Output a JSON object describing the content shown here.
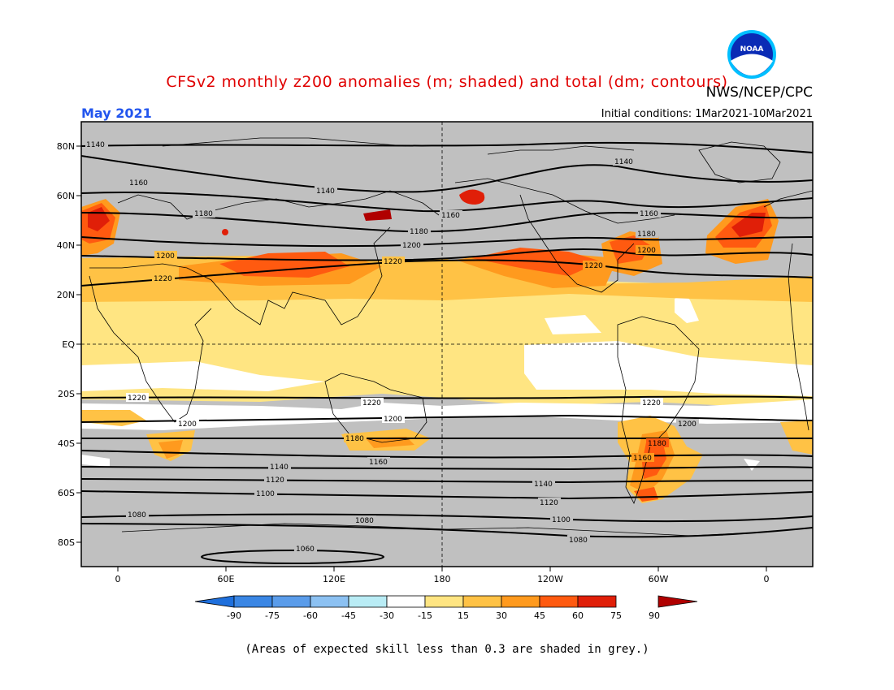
{
  "header": {
    "title": "CFSv2 monthly z200 anomalies (m; shaded) and total (dm; contours)",
    "agency": "NWS/NCEP/CPC",
    "month": "May 2021",
    "initial_conditions": "Initial conditions: 1Mar2021-10Mar2021",
    "logo_text": "NOAA",
    "title_color": "#e00000",
    "month_color": "#2255ee"
  },
  "footnote": "(Areas of expected skill less than 0.3 are shaded in grey.)",
  "map": {
    "lat_labels": [
      "80N",
      "60N",
      "40N",
      "20N",
      "EQ",
      "20S",
      "40S",
      "60S",
      "80S"
    ],
    "lon_labels": [
      "0",
      "60E",
      "120E",
      "180",
      "120W",
      "60W",
      "0"
    ],
    "contour_labels": [
      {
        "id": "c1140a",
        "text": "1140"
      },
      {
        "id": "c1140b",
        "text": "1140"
      },
      {
        "id": "c1140c",
        "text": "1140"
      },
      {
        "id": "c1160a",
        "text": "1160"
      },
      {
        "id": "c1160b",
        "text": "1160"
      },
      {
        "id": "c1160c",
        "text": "1160"
      },
      {
        "id": "c1180a",
        "text": "1180"
      },
      {
        "id": "c1180b",
        "text": "1180"
      },
      {
        "id": "c1180c",
        "text": "1180"
      },
      {
        "id": "c1200a",
        "text": "1200"
      },
      {
        "id": "c1200b",
        "text": "1200"
      },
      {
        "id": "c1200c",
        "text": "1200"
      },
      {
        "id": "c1220a",
        "text": "1220"
      },
      {
        "id": "c1220b",
        "text": "1220"
      },
      {
        "id": "c1220c",
        "text": "1220"
      },
      {
        "id": "s1220a",
        "text": "1220"
      },
      {
        "id": "s1220b",
        "text": "1220"
      },
      {
        "id": "s1220c",
        "text": "1220"
      },
      {
        "id": "s1200a",
        "text": "1200"
      },
      {
        "id": "s1200b",
        "text": "1200"
      },
      {
        "id": "s1200c",
        "text": "1200"
      },
      {
        "id": "s1180a",
        "text": "1180"
      },
      {
        "id": "s1180b",
        "text": "1180"
      },
      {
        "id": "s1160a",
        "text": "1160"
      },
      {
        "id": "s1160b",
        "text": "1160"
      },
      {
        "id": "s1140a",
        "text": "1140"
      },
      {
        "id": "s1140b",
        "text": "1140"
      },
      {
        "id": "s1120a",
        "text": "1120"
      },
      {
        "id": "s1120b",
        "text": "1120"
      },
      {
        "id": "s1100a",
        "text": "1100"
      },
      {
        "id": "s1100b",
        "text": "1100"
      },
      {
        "id": "s1080a",
        "text": "1080"
      },
      {
        "id": "s1080b",
        "text": "1080"
      },
      {
        "id": "s1080c",
        "text": "1080"
      },
      {
        "id": "s1060a",
        "text": "1060"
      }
    ]
  },
  "colorbar": {
    "labels": [
      "-90",
      "-75",
      "-60",
      "-45",
      "-30",
      "-15",
      "15",
      "30",
      "45",
      "60",
      "75",
      "90"
    ],
    "colors": [
      "#1e6fdc",
      "#3a86e4",
      "#5a9cea",
      "#8cc1f2",
      "#b9ecf5",
      "#ffffff",
      "#ffe582",
      "#ffc245",
      "#ff9a1e",
      "#ff5a10",
      "#e01f08",
      "#b00000"
    ],
    "neg_end_color": "#1e6fdc",
    "pos_end_color": "#b00000"
  },
  "colors": {
    "grey": "#c0c0c0",
    "yellow": "#ffe582",
    "light_orange": "#ffc245",
    "orange": "#ff9a1e",
    "red_orange": "#ff5a10",
    "red": "#e01f08",
    "dark_red": "#b00000"
  }
}
